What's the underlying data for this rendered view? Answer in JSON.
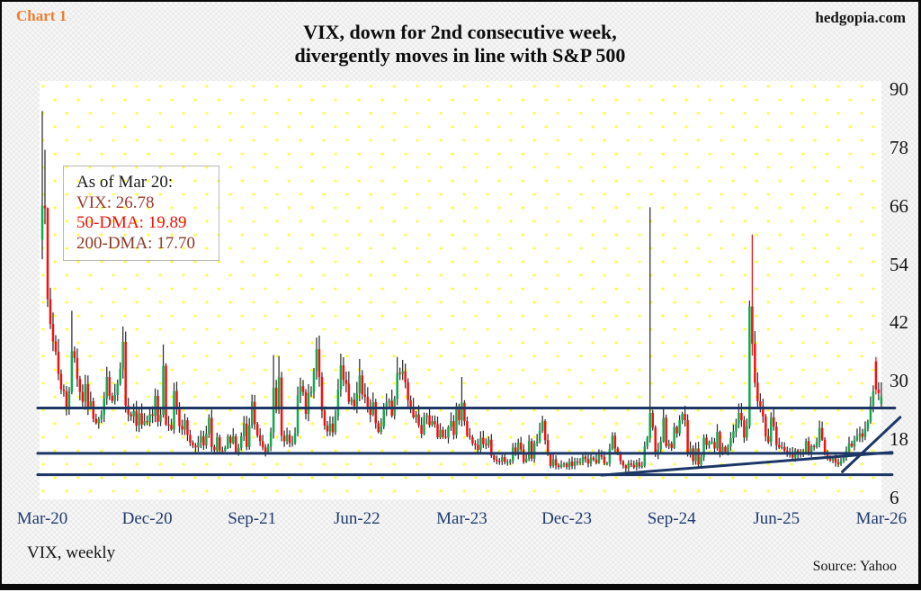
{
  "header": {
    "chart_label": "Chart 1",
    "site": "hedgopia.com",
    "title_line1": "VIX, down for 2nd consecutive week,",
    "title_line2": "divergently moves in line with S&P 500"
  },
  "annotation": {
    "lines": [
      {
        "text": "As of Mar 20:",
        "color": "#1a1a1a"
      },
      {
        "text": "VIX: 26.78",
        "color": "#9c392e"
      },
      {
        "text": "50-DMA: 19.89",
        "color": "#ee1106"
      },
      {
        "text": "200-DMA: 17.70",
        "color": "#8a3a28"
      }
    ]
  },
  "footer": {
    "series_label": "VIX, weekly",
    "source": "Source: Yahoo"
  },
  "chart_data": {
    "type": "candlestick",
    "title": "VIX, down for 2nd consecutive week, divergently moves in line with S&P 500",
    "x_ticks": [
      "Mar-20",
      "Dec-20",
      "Sep-21",
      "Jun-22",
      "Mar-23",
      "Dec-23",
      "Sep-24",
      "Jun-25",
      "Mar-26"
    ],
    "weeks_per_tick": 39,
    "y_ticks": [
      90,
      78,
      66,
      54,
      42,
      30,
      18,
      6
    ],
    "ylim": [
      4.5,
      92
    ],
    "grid": "yellow-dots",
    "legend_position": "none",
    "latest": {
      "as_of": "Mar 20",
      "vix_close": 26.78,
      "dma50": 19.89,
      "dma200": 17.7
    },
    "first_open": 59,
    "weekly_closes": [
      66.0,
      65.5,
      46.8,
      41.7,
      38.1,
      36.0,
      31.4,
      28.2,
      27.9,
      24.5,
      27.8,
      36.1,
      34.7,
      30.4,
      27.7,
      25.7,
      29.3,
      24.5,
      25.8,
      22.2,
      21.3,
      22.1,
      23.0,
      26.4,
      30.8,
      26.9,
      25.9,
      27.1,
      29.4,
      32.5,
      38.0,
      24.9,
      23.1,
      22.7,
      23.8,
      20.8,
      23.3,
      21.0,
      21.7,
      21.5,
      23.1,
      22.8,
      26.9,
      21.6,
      23.0,
      33.1,
      21.0,
      20.9,
      20.0,
      27.9,
      24.7,
      20.7,
      20.0,
      21.9,
      18.9,
      17.3,
      16.7,
      16.3,
      17.3,
      18.6,
      16.7,
      19.1,
      22.4,
      16.4,
      15.7,
      18.4,
      15.7,
      15.6,
      16.2,
      18.5,
      17.2,
      18.6,
      15.4,
      16.2,
      18.6,
      21.2,
      16.4,
      20.8,
      25.7,
      21.1,
      18.8,
      17.6,
      16.3,
      15.4,
      16.5,
      19.4,
      28.6,
      24.2,
      30.7,
      18.7,
      17.6,
      18.9,
      17.2,
      17.2,
      19.2,
      27.0,
      28.9,
      27.7,
      23.2,
      27.4,
      27.8,
      32.0,
      36.5,
      30.8,
      23.9,
      20.8,
      19.6,
      21.2,
      19.4,
      22.7,
      28.2,
      33.2,
      30.2,
      29.4,
      25.7,
      26.1,
      24.8,
      27.5,
      31.1,
      27.2,
      26.7,
      24.2,
      23.0,
      25.6,
      21.3,
      19.5,
      20.6,
      24.0,
      25.5,
      25.9,
      22.8,
      26.3,
      31.6,
      31.4,
      32.0,
      29.7,
      26.0,
      24.6,
      22.5,
      23.1,
      20.9,
      19.1,
      22.6,
      22.9,
      20.9,
      21.7,
      21.1,
      18.4,
      19.9,
      18.5,
      18.3,
      20.5,
      21.7,
      18.9,
      24.8,
      21.9,
      25.5,
      21.7,
      18.7,
      18.4,
      17.1,
      16.8,
      15.8,
      18.3,
      17.0,
      16.8,
      17.9,
      14.6,
      13.8,
      13.5,
      13.4,
      14.3,
      13.3,
      13.3,
      13.6,
      16.3,
      14.8,
      17.3,
      15.9,
      13.3,
      14.0,
      17.6,
      14.0,
      17.2,
      17.5,
      19.7,
      21.7,
      17.8,
      14.9,
      12.5,
      13.9,
      12.6,
      12.3,
      12.8,
      13.0,
      12.3,
      13.4,
      12.5,
      13.4,
      13.3,
      13.3,
      14.4,
      13.9,
      13.0,
      14.2,
      13.8,
      13.1,
      14.7,
      14.4,
      13.0,
      13.0,
      16.0,
      18.7,
      16.1,
      15.0,
      13.5,
      12.6,
      12.0,
      13.0,
      12.7,
      12.2,
      13.2,
      12.4,
      12.5,
      16.5,
      18.3,
      23.4,
      20.4,
      14.8,
      15.9,
      17.5,
      22.4,
      16.6,
      17.1,
      16.2,
      20.5,
      19.2,
      21.9,
      23.2,
      21.9,
      15.2,
      16.1,
      13.5,
      16.1,
      12.8,
      14.3,
      18.3,
      16.8,
      17.4,
      17.4,
      16.1,
      19.5,
      14.9,
      16.4,
      15.4,
      16.5,
      18.2,
      19.6,
      21.1,
      23.4,
      21.9,
      18.4,
      20.7,
      45.3,
      37.6,
      29.6,
      25.8,
      24.8,
      22.7,
      18.6,
      17.4,
      22.5,
      20.6,
      16.8,
      16.3,
      16.4,
      15.6,
      14.9,
      15.2,
      14.2,
      15.7,
      14.9,
      15.4,
      15.2,
      17.6,
      15.3,
      16.6,
      16.4,
      17.4,
      20.3,
      17.9,
      15.3,
      14.0,
      13.6,
      14.1,
      13.2,
      12.9,
      13.5,
      14.2,
      15.6,
      17.1,
      16.5,
      17.8,
      18.6,
      19.2,
      18.5,
      20.1,
      21.6,
      24.9,
      27.9,
      28.2,
      27.5,
      26.78
    ],
    "overrides": {
      "0": {
        "o": 59.0,
        "h": 85.5,
        "l": 55.0
      },
      "1": {
        "h": 77.5
      },
      "2": {
        "h": 57.0
      },
      "11": {
        "h": 44.4
      },
      "30": {
        "h": 41.2
      },
      "45": {
        "h": 37.5
      },
      "86": {
        "h": 35.3
      },
      "88": {
        "h": 35.1
      },
      "102": {
        "h": 38.9
      },
      "111": {
        "h": 35.6
      },
      "118": {
        "h": 34.5
      },
      "132": {
        "h": 34.9
      },
      "134": {
        "h": 34.3
      },
      "156": {
        "h": 30.8
      },
      "226": {
        "h": 65.7
      },
      "263": {
        "h": 46.5
      },
      "264": {
        "h": 60.1,
        "wick": "#f50f0f"
      },
      "310": {
        "o": 34.0,
        "h": 34.9,
        "l": 27.2,
        "wick": "#f50f0f"
      },
      "312": {
        "o": 25.2,
        "h": 29.7,
        "l": 24.6
      }
    },
    "trendlines": [
      {
        "name": "horizontal-resistance-24",
        "i1": -1.7,
        "v1": 24.4,
        "i2": 317,
        "v2": 24.4
      },
      {
        "name": "horizontal-support-15",
        "i1": -1.7,
        "v1": 15.1,
        "i2": 316,
        "v2": 15.1
      },
      {
        "name": "horizontal-support-11",
        "i1": -1.7,
        "v1": 10.7,
        "i2": 316,
        "v2": 10.7
      },
      {
        "name": "rising-trendline-gentle",
        "i1": 208,
        "v1": 10.6,
        "i2": 316,
        "v2": 15.3
      },
      {
        "name": "rising-trendline-steep",
        "i1": 297.5,
        "v1": 11.3,
        "i2": 319,
        "v2": 22.5
      }
    ],
    "colors": {
      "up": "#12a94d",
      "down": "#f50f0f",
      "wick": "#2e2e2e",
      "trendline": "#1c3766",
      "x_label": "#1e3a6e",
      "y_label": "#141414",
      "chart_label": "#ed7d31",
      "dot_grid": "#ffff2a"
    }
  }
}
